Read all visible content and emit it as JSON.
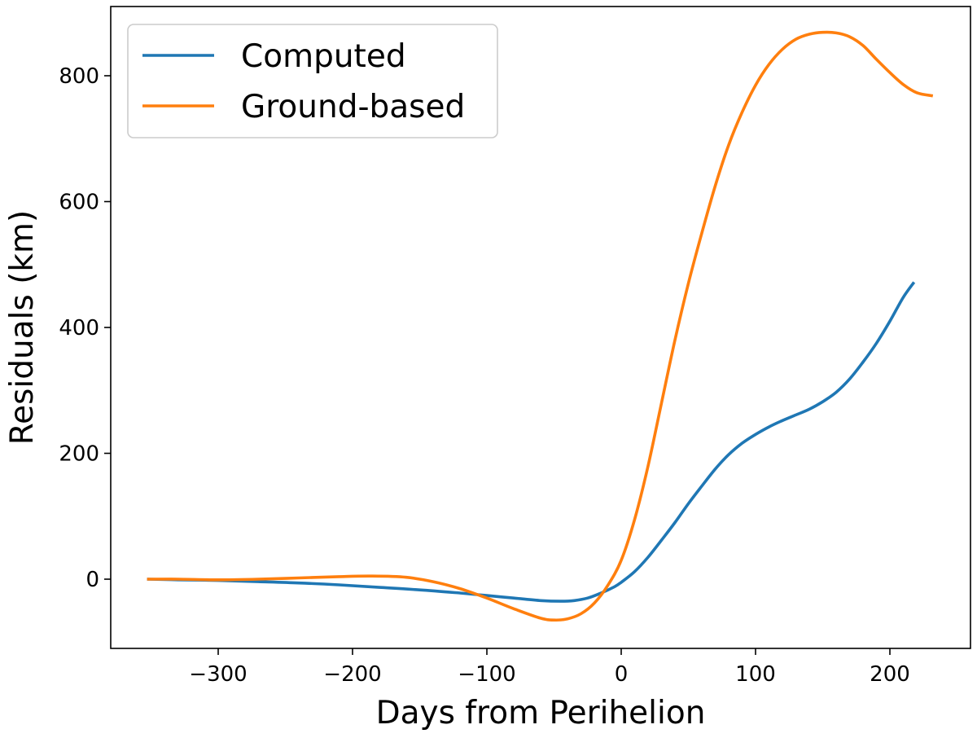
{
  "chart_data": {
    "type": "line",
    "title": "",
    "xlabel": "Days from Perihelion",
    "ylabel": "Residuals (km)",
    "xlim": [
      -380,
      260
    ],
    "ylim": [
      -110,
      910
    ],
    "x_ticks": [
      -300,
      -200,
      -100,
      0,
      100,
      200
    ],
    "x_tick_labels": [
      "−300",
      "−200",
      "−100",
      "0",
      "100",
      "200"
    ],
    "y_ticks": [
      0,
      200,
      400,
      600,
      800
    ],
    "y_tick_labels": [
      "0",
      "200",
      "400",
      "600",
      "800"
    ],
    "grid": false,
    "legend_position": "top-left",
    "series": [
      {
        "name": "Computed",
        "color": "#1f77b4",
        "x": [
          -353,
          -330,
          -300,
          -270,
          -240,
          -210,
          -180,
          -150,
          -120,
          -100,
          -80,
          -60,
          -45,
          -35,
          -25,
          -15,
          -5,
          0,
          10,
          20,
          30,
          40,
          50,
          60,
          70,
          80,
          90,
          100,
          110,
          120,
          130,
          140,
          150,
          160,
          170,
          180,
          190,
          200,
          210,
          218
        ],
        "y": [
          0,
          -1,
          -2,
          -4,
          -6,
          -9,
          -13,
          -17,
          -22,
          -26,
          -30,
          -34,
          -35,
          -34,
          -30,
          -22,
          -12,
          -5,
          12,
          35,
          62,
          90,
          120,
          148,
          175,
          198,
          216,
          230,
          242,
          252,
          261,
          270,
          282,
          297,
          318,
          345,
          375,
          410,
          448,
          472
        ]
      },
      {
        "name": "Ground-based",
        "color": "#ff7f0e",
        "x": [
          -353,
          -330,
          -300,
          -270,
          -240,
          -210,
          -185,
          -160,
          -140,
          -120,
          -100,
          -80,
          -60,
          -50,
          -40,
          -30,
          -20,
          -10,
          0,
          10,
          20,
          30,
          40,
          50,
          60,
          70,
          80,
          90,
          100,
          110,
          120,
          130,
          140,
          150,
          160,
          170,
          180,
          190,
          200,
          210,
          220,
          232
        ],
        "y": [
          0,
          0,
          -1,
          0,
          2,
          4,
          5,
          3,
          -4,
          -15,
          -30,
          -47,
          -62,
          -65,
          -63,
          -55,
          -38,
          -10,
          30,
          95,
          180,
          280,
          380,
          470,
          550,
          625,
          690,
          742,
          785,
          818,
          842,
          858,
          866,
          869,
          868,
          862,
          848,
          826,
          805,
          786,
          773,
          768
        ]
      }
    ]
  }
}
